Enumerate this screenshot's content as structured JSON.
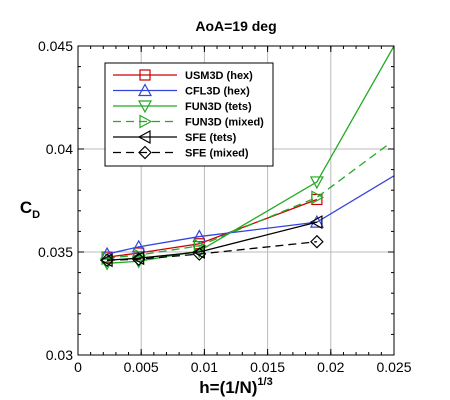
{
  "chart_data": {
    "type": "line",
    "title": "AoA=19 deg",
    "xlabel": {
      "main": "h=(1/N)",
      "sup": "1/3"
    },
    "ylabel": {
      "main": "C",
      "sub": "D"
    },
    "xlim": [
      0,
      0.025
    ],
    "ylim": [
      0.03,
      0.045
    ],
    "xticks": [
      0,
      0.005,
      0.01,
      0.015,
      0.02,
      0.025
    ],
    "xtick_labels": [
      "0",
      "0.005",
      "0.01",
      "0.015",
      "0.02",
      "0.025"
    ],
    "yticks": [
      0.03,
      0.035,
      0.04,
      0.045
    ],
    "ytick_labels": [
      "0.03",
      "0.035",
      "0.04",
      "0.045"
    ],
    "grid": true,
    "legend_position": "top-left",
    "series": [
      {
        "name": "USM3D (hex)",
        "color": "#cc0000",
        "dash": "solid",
        "marker": "square",
        "x": [
          0.0023,
          0.0048,
          0.0096,
          0.0189
        ],
        "y": [
          0.03475,
          0.03495,
          0.0354,
          0.03755
        ],
        "marker_x": [
          0.0023,
          0.0048,
          0.0096,
          0.0189
        ]
      },
      {
        "name": "CFL3D (hex)",
        "color": "#3344dd",
        "dash": "solid",
        "marker": "triangle-up",
        "x": [
          0.0023,
          0.0048,
          0.0096,
          0.0189,
          0.025
        ],
        "y": [
          0.0349,
          0.03525,
          0.03575,
          0.03645,
          0.0387
        ],
        "marker_x": [
          0.0023,
          0.0048,
          0.0096,
          0.0189
        ]
      },
      {
        "name": "FUN3D (tets)",
        "color": "#22aa22",
        "dash": "solid",
        "marker": "triangle-down",
        "x": [
          0.0023,
          0.0048,
          0.0096,
          0.0189,
          0.025
        ],
        "y": [
          0.03445,
          0.03455,
          0.03505,
          0.0384,
          0.045
        ],
        "marker_x": [
          0.0023,
          0.0048,
          0.0096,
          0.0189
        ]
      },
      {
        "name": "FUN3D (mixed)",
        "color": "#22aa22",
        "dash": "dashed",
        "marker": "triangle-right",
        "x": [
          0.0023,
          0.0048,
          0.0096,
          0.0189,
          0.0245
        ],
        "y": [
          0.0347,
          0.03485,
          0.0353,
          0.03765,
          0.0402
        ],
        "marker_x": [
          0.0023,
          0.0048,
          0.0096,
          0.0189
        ]
      },
      {
        "name": "SFE (tets)",
        "color": "#000000",
        "dash": "solid",
        "marker": "triangle-left",
        "x": [
          0.0023,
          0.0048,
          0.0096,
          0.0189
        ],
        "y": [
          0.0346,
          0.0347,
          0.035,
          0.03645
        ],
        "marker_x": [
          0.0023,
          0.0048,
          0.0096,
          0.0189
        ]
      },
      {
        "name": "SFE (mixed)",
        "color": "#000000",
        "dash": "dashed",
        "marker": "diamond",
        "x": [
          0.0023,
          0.0048,
          0.0096,
          0.0189
        ],
        "y": [
          0.0346,
          0.03465,
          0.0349,
          0.0355
        ],
        "marker_x": [
          0.0023,
          0.0048,
          0.0096,
          0.0189
        ]
      }
    ]
  }
}
